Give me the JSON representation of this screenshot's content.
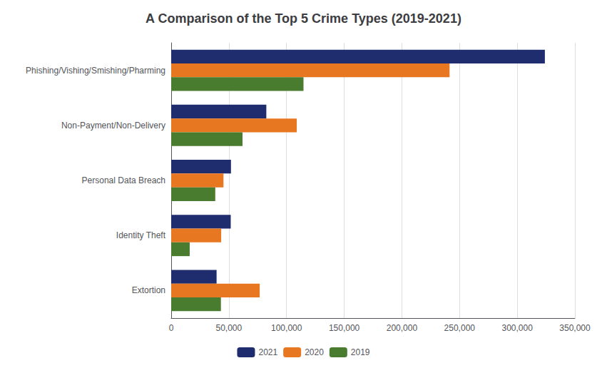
{
  "chart_data": {
    "type": "bar",
    "orientation": "horizontal",
    "title": "A Comparison of the Top 5 Crime Types (2019-2021)",
    "categories": [
      "Phishing/Vishing/Smishing/Pharming",
      "Non-Payment/Non-Delivery",
      "Personal Data Breach",
      "Identity Theft",
      "Extortion"
    ],
    "series": [
      {
        "name": "2021",
        "color": "#1F2D6E",
        "values": [
          323972,
          82478,
          51829,
          51629,
          39360
        ]
      },
      {
        "name": "2020",
        "color": "#E87722",
        "values": [
          241342,
          108869,
          45330,
          43330,
          76741
        ]
      },
      {
        "name": "2019",
        "color": "#4A7C2F",
        "values": [
          114702,
          61832,
          38218,
          16053,
          43101
        ]
      }
    ],
    "xlim": [
      0,
      350000
    ],
    "xticks": [
      0,
      {
        "value": 50000,
        "label": "50,000"
      },
      {
        "value": 100000,
        "label": "100,000"
      },
      {
        "value": 150000,
        "label": "150,000"
      },
      {
        "value": 200000,
        "label": "200,000"
      },
      {
        "value": 250000,
        "label": "250,000"
      },
      {
        "value": 300000,
        "label": "300,000"
      },
      {
        "value": 350000,
        "label": "350,000"
      }
    ],
    "grid": true,
    "legend": "bottom"
  }
}
